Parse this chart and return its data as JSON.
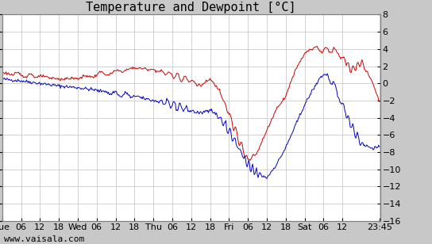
{
  "title": "Temperature and Dewpoint [°C]",
  "ylim": [
    -16,
    8
  ],
  "yticks": [
    -16,
    -14,
    -12,
    -10,
    -8,
    -6,
    -4,
    -2,
    0,
    2,
    4,
    6,
    8
  ],
  "x_tick_positions": [
    0,
    6,
    12,
    18,
    24,
    30,
    36,
    42,
    48,
    54,
    60,
    66,
    72,
    78,
    84,
    90,
    96,
    102,
    108,
    119.75
  ],
  "x_tick_labels": [
    "Tue",
    "06",
    "12",
    "18",
    "Wed",
    "06",
    "12",
    "18",
    "Thu",
    "06",
    "12",
    "18",
    "Fri",
    "06",
    "12",
    "18",
    "Sat",
    "06",
    "12",
    "23:45"
  ],
  "temp_color": "#cc0000",
  "dewpoint_color": "#0000cc",
  "bg_color": "#ffffff",
  "border_color": "#808080",
  "grid_color": "#c0c0c0",
  "watermark": "www.vaisala.com",
  "title_fontsize": 11,
  "tick_fontsize": 8,
  "watermark_fontsize": 8,
  "fig_facecolor": "#c8c8c8",
  "temp_knots_x": [
    0,
    6,
    12,
    18,
    24,
    30,
    36,
    42,
    48,
    51,
    54,
    60,
    63,
    66,
    69,
    72,
    75,
    78,
    81,
    84,
    87,
    90,
    93,
    96,
    99,
    102,
    105,
    108,
    111,
    114,
    117,
    119.75
  ],
  "temp_knots_y": [
    1.2,
    1.0,
    0.8,
    0.5,
    0.6,
    1.0,
    1.3,
    1.8,
    1.6,
    1.3,
    1.0,
    0.3,
    -0.3,
    0.5,
    -0.8,
    -3.5,
    -6.5,
    -9.0,
    -8.0,
    -5.5,
    -3.0,
    -1.5,
    1.5,
    3.5,
    4.2,
    3.8,
    4.0,
    3.0,
    1.5,
    2.5,
    0.5,
    -2.0
  ],
  "dew_knots_x": [
    0,
    6,
    12,
    18,
    24,
    30,
    36,
    42,
    48,
    51,
    54,
    57,
    60,
    63,
    66,
    69,
    72,
    75,
    78,
    81,
    84,
    87,
    90,
    93,
    96,
    99,
    102,
    105,
    108,
    111,
    114,
    117,
    119.75
  ],
  "dew_knots_y": [
    0.5,
    0.3,
    0.0,
    -0.3,
    -0.5,
    -0.8,
    -1.2,
    -1.5,
    -2.0,
    -2.2,
    -2.5,
    -2.8,
    -3.2,
    -3.5,
    -3.0,
    -4.0,
    -5.5,
    -7.5,
    -9.5,
    -10.5,
    -11.0,
    -9.5,
    -7.5,
    -5.0,
    -2.5,
    -0.5,
    1.2,
    0.0,
    -2.5,
    -5.0,
    -7.0,
    -7.5,
    -7.5
  ]
}
